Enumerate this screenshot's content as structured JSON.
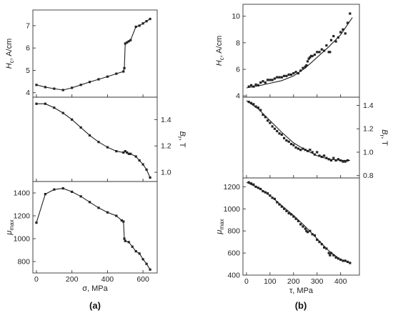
{
  "captions": {
    "a": "(a)",
    "b": "(b)"
  },
  "chart_data": [
    {
      "type": "line",
      "panel": "a-top",
      "ylabel": "H_c, A/cm",
      "ylim": [
        3.8,
        7.7
      ],
      "yticks": [
        "4",
        "5",
        "6",
        "7"
      ],
      "xlim": [
        -20,
        680
      ],
      "series": [
        {
          "x": [
            0,
            50,
            100,
            150,
            200,
            250,
            300,
            350,
            400,
            450,
            490,
            495,
            500,
            510,
            520,
            530,
            560,
            580,
            600,
            620,
            640
          ],
          "y": [
            4.35,
            4.25,
            4.18,
            4.12,
            4.22,
            4.35,
            4.48,
            4.6,
            4.72,
            4.85,
            4.95,
            5.1,
            6.2,
            6.25,
            6.3,
            6.35,
            6.95,
            7.0,
            7.1,
            7.2,
            7.3
          ]
        }
      ]
    },
    {
      "type": "line",
      "panel": "a-middle",
      "ylabel": "B_r, T",
      "y_axis_side": "right",
      "ylim": [
        0.93,
        1.57
      ],
      "yticks": [
        "1.0",
        "1.2",
        "1.4"
      ],
      "xlim": [
        -20,
        680
      ],
      "series": [
        {
          "x": [
            0,
            50,
            100,
            150,
            200,
            250,
            300,
            350,
            400,
            450,
            490,
            500,
            510,
            520,
            530,
            560,
            580,
            600,
            620,
            640
          ],
          "y": [
            1.52,
            1.52,
            1.49,
            1.45,
            1.4,
            1.34,
            1.28,
            1.23,
            1.19,
            1.16,
            1.15,
            1.16,
            1.15,
            1.14,
            1.14,
            1.12,
            1.09,
            1.06,
            1.02,
            0.96
          ]
        }
      ]
    },
    {
      "type": "line",
      "panel": "a-bottom",
      "ylabel": "μ_max",
      "xlabel": "σ, MPa",
      "ylim": [
        700,
        1500
      ],
      "yticks": [
        "800",
        "1000",
        "1200",
        "1400"
      ],
      "xlim": [
        -20,
        680
      ],
      "xticks": [
        "0",
        "200",
        "400",
        "600"
      ],
      "series": [
        {
          "x": [
            0,
            50,
            100,
            150,
            200,
            250,
            300,
            350,
            400,
            450,
            480,
            490,
            495,
            500,
            520,
            540,
            560,
            580,
            600,
            620,
            640
          ],
          "y": [
            1140,
            1390,
            1430,
            1440,
            1410,
            1370,
            1320,
            1270,
            1230,
            1200,
            1160,
            1150,
            1000,
            980,
            970,
            930,
            890,
            870,
            820,
            780,
            730
          ]
        }
      ]
    },
    {
      "type": "scatter",
      "panel": "b-top",
      "ylabel": "H_c, A/cm",
      "ylim": [
        3.9,
        10.9
      ],
      "yticks": [
        "4",
        "6",
        "8",
        "10"
      ],
      "xlim": [
        -15,
        480
      ],
      "xy": [
        [
          10,
          4.7
        ],
        [
          20,
          4.8
        ],
        [
          30,
          4.7
        ],
        [
          40,
          4.85
        ],
        [
          50,
          4.8
        ],
        [
          60,
          5.0
        ],
        [
          70,
          5.1
        ],
        [
          80,
          5.0
        ],
        [
          90,
          5.2
        ],
        [
          100,
          5.2
        ],
        [
          110,
          5.2
        ],
        [
          120,
          5.3
        ],
        [
          130,
          5.4
        ],
        [
          140,
          5.4
        ],
        [
          150,
          5.4
        ],
        [
          160,
          5.5
        ],
        [
          170,
          5.5
        ],
        [
          180,
          5.6
        ],
        [
          190,
          5.6
        ],
        [
          200,
          5.7
        ],
        [
          210,
          5.8
        ],
        [
          220,
          5.7
        ],
        [
          230,
          5.9
        ],
        [
          240,
          6.1
        ],
        [
          250,
          6.2
        ],
        [
          255,
          6.3
        ],
        [
          260,
          6.6
        ],
        [
          265,
          6.8
        ],
        [
          270,
          6.9
        ],
        [
          275,
          7.0
        ],
        [
          280,
          7.0
        ],
        [
          290,
          7.1
        ],
        [
          300,
          7.3
        ],
        [
          310,
          7.3
        ],
        [
          320,
          7.5
        ],
        [
          330,
          7.4
        ],
        [
          340,
          7.8
        ],
        [
          350,
          7.3
        ],
        [
          355,
          7.3
        ],
        [
          360,
          8.2
        ],
        [
          370,
          8.5
        ],
        [
          380,
          8.1
        ],
        [
          390,
          8.4
        ],
        [
          400,
          8.8
        ],
        [
          410,
          9.0
        ],
        [
          420,
          8.7
        ],
        [
          430,
          9.5
        ],
        [
          440,
          10.2
        ]
      ],
      "fit": {
        "x": [
          0,
          50,
          100,
          150,
          200,
          250,
          300,
          350,
          400,
          450
        ],
        "y": [
          4.6,
          4.75,
          4.95,
          5.15,
          5.5,
          6.1,
          6.9,
          7.7,
          8.6,
          9.9
        ]
      }
    },
    {
      "type": "scatter",
      "panel": "b-middle",
      "ylabel": "B_r, T",
      "y_axis_side": "right",
      "ylim": [
        0.78,
        1.47
      ],
      "yticks": [
        "0.8",
        "1.0",
        "1.2",
        "1.4"
      ],
      "xlim": [
        -15,
        480
      ],
      "xy": [
        [
          10,
          1.43
        ],
        [
          20,
          1.42
        ],
        [
          30,
          1.41
        ],
        [
          40,
          1.39
        ],
        [
          50,
          1.38
        ],
        [
          60,
          1.36
        ],
        [
          70,
          1.32
        ],
        [
          80,
          1.3
        ],
        [
          90,
          1.27
        ],
        [
          100,
          1.25
        ],
        [
          110,
          1.22
        ],
        [
          120,
          1.2
        ],
        [
          130,
          1.18
        ],
        [
          140,
          1.16
        ],
        [
          150,
          1.15
        ],
        [
          160,
          1.12
        ],
        [
          170,
          1.1
        ],
        [
          180,
          1.09
        ],
        [
          190,
          1.07
        ],
        [
          200,
          1.06
        ],
        [
          210,
          1.04
        ],
        [
          220,
          1.03
        ],
        [
          230,
          1.02
        ],
        [
          240,
          1.03
        ],
        [
          250,
          1.02
        ],
        [
          260,
          1.01
        ],
        [
          270,
          1.02
        ],
        [
          280,
          1.0
        ],
        [
          290,
          0.98
        ],
        [
          300,
          1.0
        ],
        [
          310,
          0.97
        ],
        [
          320,
          0.96
        ],
        [
          330,
          0.97
        ],
        [
          340,
          0.95
        ],
        [
          350,
          0.94
        ],
        [
          360,
          0.93
        ],
        [
          370,
          0.95
        ],
        [
          380,
          0.93
        ],
        [
          390,
          0.94
        ],
        [
          400,
          0.93
        ],
        [
          410,
          0.92
        ],
        [
          420,
          0.92
        ],
        [
          430,
          0.93
        ]
      ],
      "fit": {
        "x": [
          0,
          50,
          100,
          150,
          200,
          250,
          300,
          350,
          400,
          440
        ],
        "y": [
          1.44,
          1.37,
          1.27,
          1.17,
          1.08,
          1.02,
          0.97,
          0.94,
          0.93,
          0.93
        ]
      }
    },
    {
      "type": "scatter",
      "panel": "b-bottom",
      "ylabel": "μ_max",
      "xlabel": "τ, MPa",
      "ylim": [
        400,
        1280
      ],
      "yticks": [
        "400",
        "600",
        "800",
        "1000",
        "1200"
      ],
      "xlim": [
        -15,
        480
      ],
      "xticks": [
        "0",
        "100",
        "200",
        "300",
        "400"
      ],
      "xy": [
        [
          10,
          1240
        ],
        [
          20,
          1230
        ],
        [
          30,
          1220
        ],
        [
          40,
          1200
        ],
        [
          50,
          1190
        ],
        [
          60,
          1180
        ],
        [
          70,
          1160
        ],
        [
          80,
          1150
        ],
        [
          90,
          1140
        ],
        [
          100,
          1120
        ],
        [
          110,
          1100
        ],
        [
          120,
          1090
        ],
        [
          130,
          1060
        ],
        [
          140,
          1040
        ],
        [
          150,
          1020
        ],
        [
          160,
          1000
        ],
        [
          170,
          980
        ],
        [
          180,
          960
        ],
        [
          190,
          950
        ],
        [
          200,
          930
        ],
        [
          210,
          910
        ],
        [
          220,
          890
        ],
        [
          230,
          860
        ],
        [
          240,
          840
        ],
        [
          250,
          820
        ],
        [
          255,
          800
        ],
        [
          260,
          790
        ],
        [
          270,
          800
        ],
        [
          280,
          770
        ],
        [
          290,
          760
        ],
        [
          300,
          720
        ],
        [
          310,
          700
        ],
        [
          320,
          680
        ],
        [
          330,
          650
        ],
        [
          340,
          640
        ],
        [
          350,
          600
        ],
        [
          355,
          580
        ],
        [
          360,
          600
        ],
        [
          370,
          580
        ],
        [
          380,
          560
        ],
        [
          390,
          550
        ],
        [
          400,
          540
        ],
        [
          410,
          530
        ],
        [
          420,
          530
        ],
        [
          430,
          520
        ],
        [
          440,
          510
        ]
      ],
      "fit": {
        "x": [
          0,
          50,
          100,
          150,
          200,
          250,
          300,
          350,
          400,
          445
        ],
        "y": [
          1240,
          1190,
          1120,
          1030,
          940,
          840,
          730,
          620,
          540,
          510
        ]
      }
    }
  ]
}
